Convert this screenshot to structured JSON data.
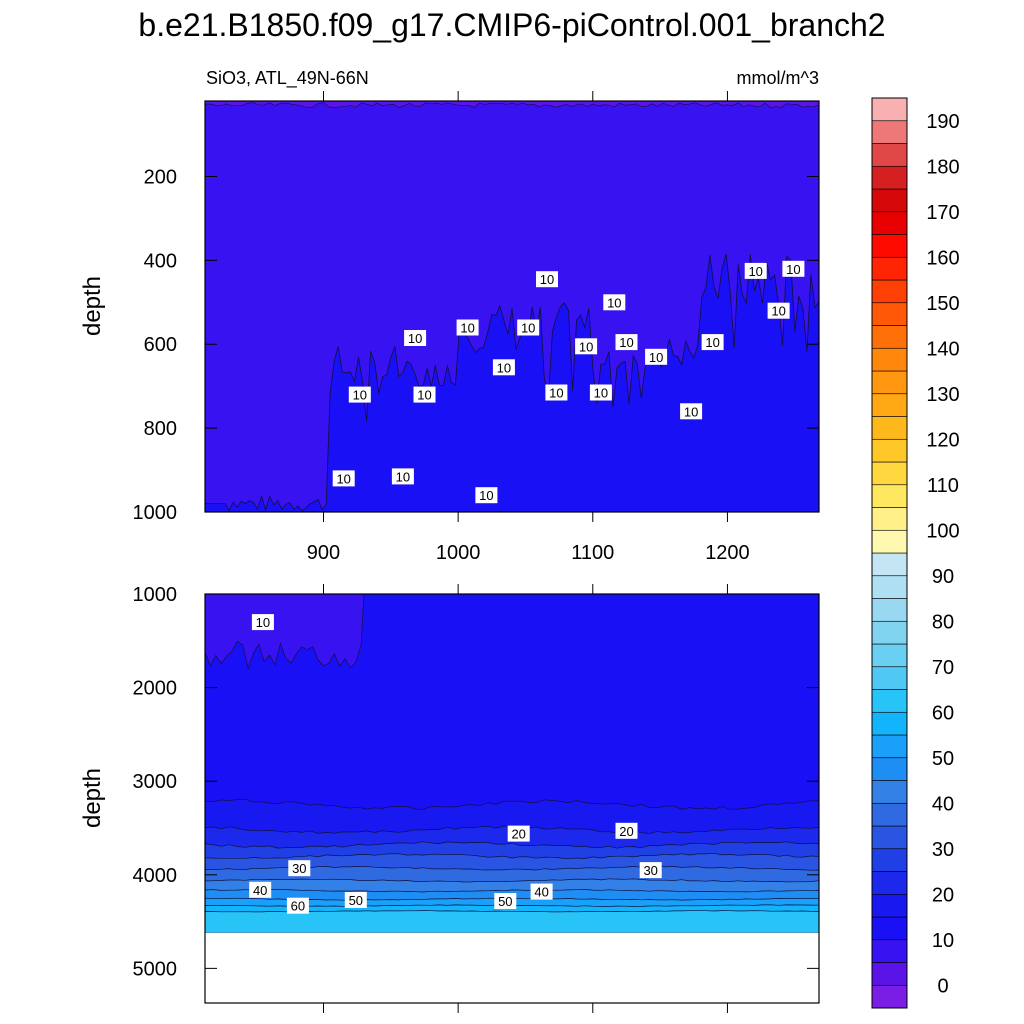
{
  "chart_data": [
    {
      "type": "contour",
      "panel": "upper",
      "title": "b.e21.B1850.f09_g17.CMIP6-piControl.001_branch2",
      "left_subtitle": "SiO3, ATL_49N-66N",
      "right_subtitle": "mmol/m^3",
      "ylabel": "depth",
      "xlim": [
        812,
        1268
      ],
      "ylim": [
        1000,
        20
      ],
      "x_ticks": [
        900,
        1000,
        1100,
        1200
      ],
      "y_ticks": [
        200,
        400,
        600,
        800,
        1000
      ],
      "contour_labels": [
        {
          "text": "10",
          "x": 1066,
          "y": 445
        },
        {
          "text": "10",
          "x": 1221,
          "y": 425
        },
        {
          "text": "10",
          "x": 1249,
          "y": 420
        },
        {
          "text": "10",
          "x": 1116,
          "y": 500
        },
        {
          "text": "10",
          "x": 1238,
          "y": 520
        },
        {
          "text": "10",
          "x": 1007,
          "y": 560
        },
        {
          "text": "10",
          "x": 1052,
          "y": 560
        },
        {
          "text": "10",
          "x": 968,
          "y": 585
        },
        {
          "text": "10",
          "x": 1125,
          "y": 595
        },
        {
          "text": "10",
          "x": 1189,
          "y": 595
        },
        {
          "text": "10",
          "x": 1095,
          "y": 605
        },
        {
          "text": "10",
          "x": 1147,
          "y": 630
        },
        {
          "text": "10",
          "x": 1034,
          "y": 655
        },
        {
          "text": "10",
          "x": 927,
          "y": 720
        },
        {
          "text": "10",
          "x": 975,
          "y": 720
        },
        {
          "text": "10",
          "x": 1073,
          "y": 715
        },
        {
          "text": "10",
          "x": 1106,
          "y": 715
        },
        {
          "text": "10",
          "x": 1173,
          "y": 760
        },
        {
          "text": "10",
          "x": 915,
          "y": 920
        },
        {
          "text": "10",
          "x": 959,
          "y": 915
        },
        {
          "text": "10",
          "x": 1021,
          "y": 960
        }
      ]
    },
    {
      "type": "contour",
      "panel": "lower",
      "ylabel": "depth",
      "xlim": [
        812,
        1268
      ],
      "ylim": [
        5370,
        1000
      ],
      "x_ticks": [
        900,
        1000,
        1100,
        1200
      ],
      "y_ticks": [
        1000,
        2000,
        3000,
        4000,
        5000
      ],
      "contour_labels": [
        {
          "text": "10",
          "x": 855,
          "y": 1300
        },
        {
          "text": "20",
          "x": 1045,
          "y": 3560
        },
        {
          "text": "20",
          "x": 1125,
          "y": 3530
        },
        {
          "text": "30",
          "x": 882,
          "y": 3930
        },
        {
          "text": "30",
          "x": 1143,
          "y": 3950
        },
        {
          "text": "40",
          "x": 853,
          "y": 4160
        },
        {
          "text": "40",
          "x": 1062,
          "y": 4180
        },
        {
          "text": "50",
          "x": 924,
          "y": 4270
        },
        {
          "text": "50",
          "x": 1035,
          "y": 4280
        },
        {
          "text": "60",
          "x": 881,
          "y": 4330
        }
      ]
    }
  ],
  "colorbar": {
    "labels": [
      "0",
      "10",
      "20",
      "30",
      "40",
      "50",
      "60",
      "70",
      "80",
      "90",
      "100",
      "110",
      "120",
      "130",
      "140",
      "150",
      "160",
      "170",
      "180",
      "190"
    ],
    "colors": [
      "#7a1ee6",
      "#5a14e8",
      "#3812f0",
      "#1a10f5",
      "#1818f0",
      "#1c28ec",
      "#2040e6",
      "#2a55e2",
      "#2f6ae0",
      "#3380e6",
      "#1e8ef4",
      "#1aa0f8",
      "#12b4fc",
      "#28c4f8",
      "#50c8f4",
      "#6ad0f2",
      "#80d4f0",
      "#98d8f0",
      "#aedff2",
      "#c4e6f4",
      "#fff9b0",
      "#fff08a",
      "#ffe860",
      "#ffd840",
      "#ffc828",
      "#ffb81c",
      "#ffa814",
      "#ff9810",
      "#ff880c",
      "#ff7008",
      "#ff5806",
      "#ff4004",
      "#ff2402",
      "#ff0a00",
      "#e80000",
      "#d40808",
      "#d42020",
      "#e04848",
      "#ee7878",
      "#f8b0b0"
    ]
  }
}
